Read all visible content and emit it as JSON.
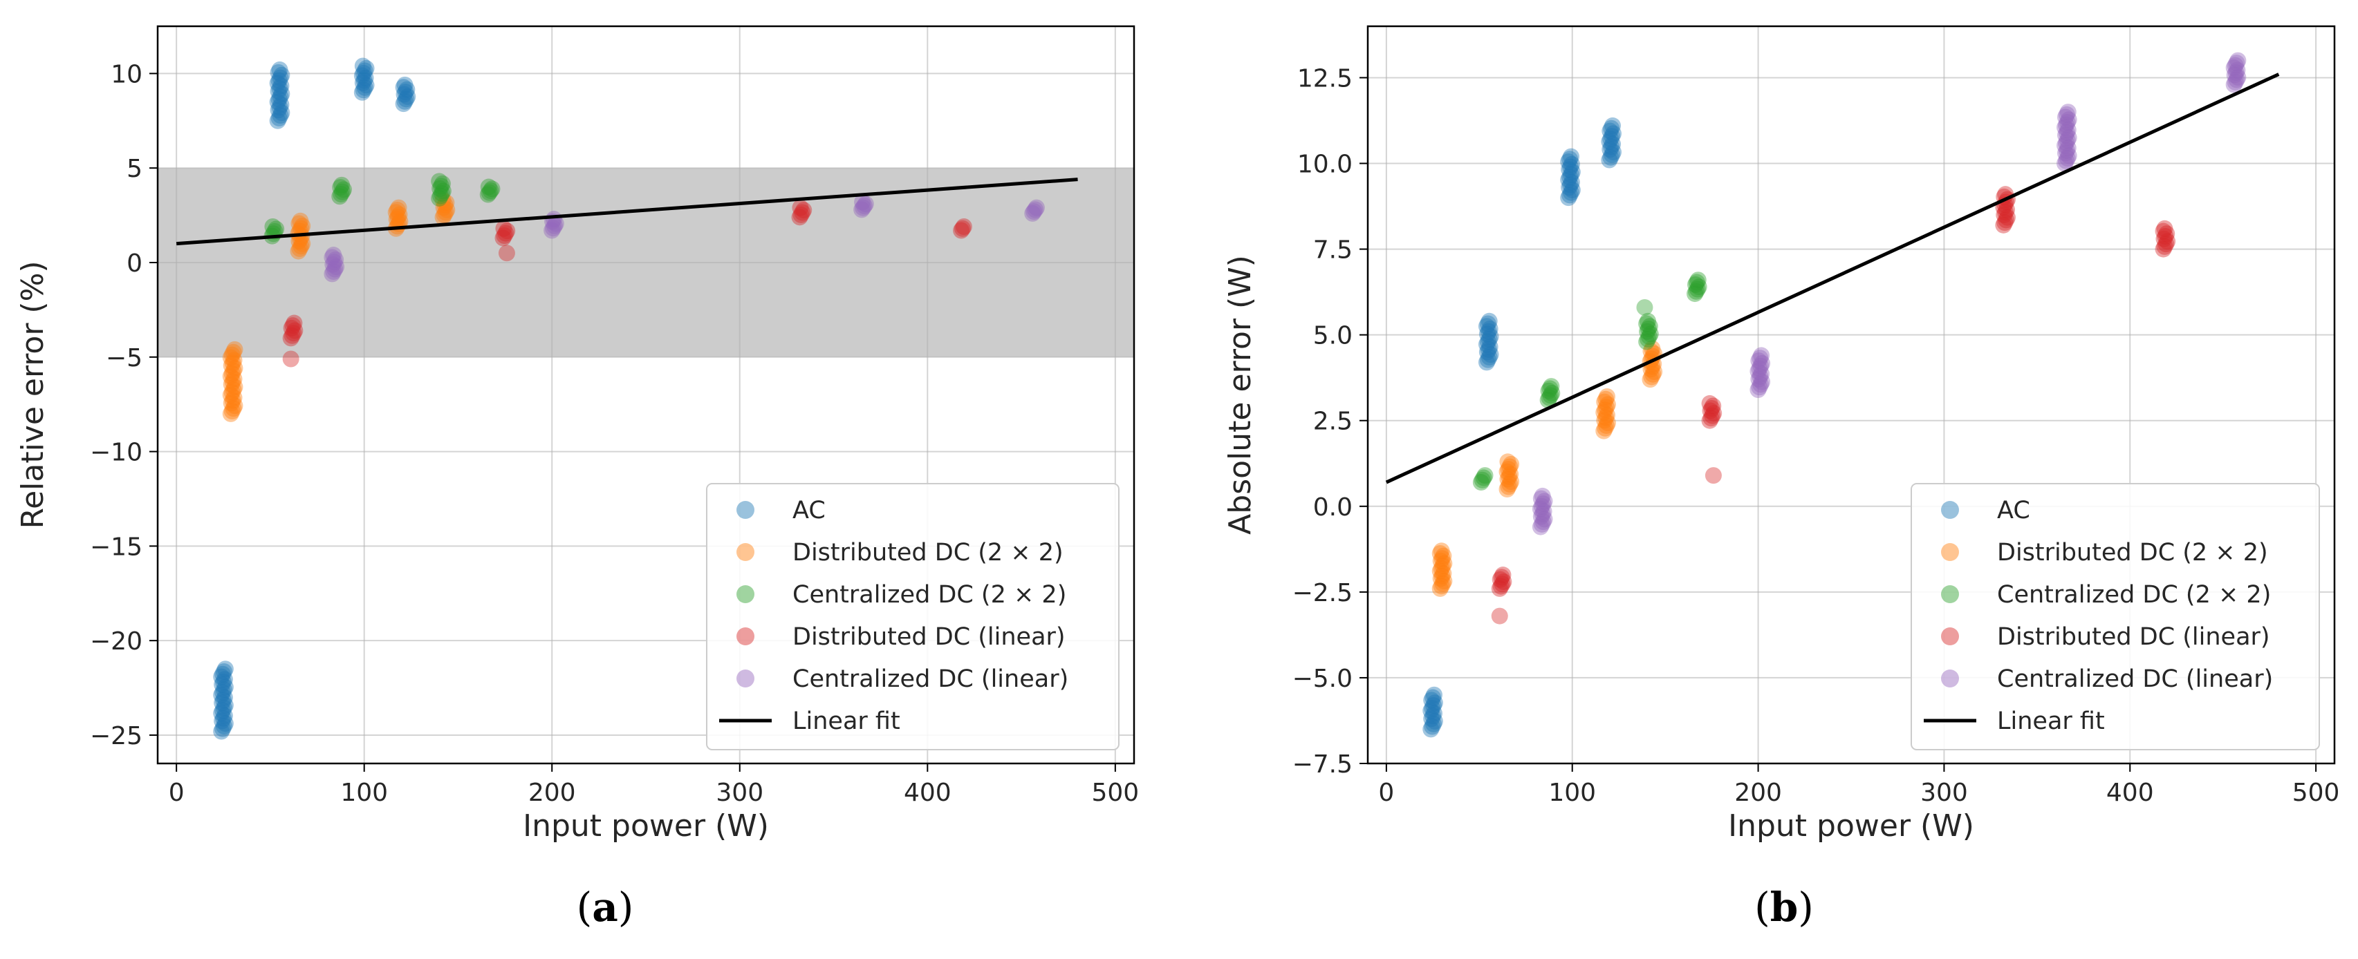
{
  "chart_data": [
    {
      "type": "scatter",
      "panel_label": {
        "open": "(",
        "letter": "a",
        "close": ")"
      },
      "title": "",
      "xlabel": "Input power (W)",
      "ylabel": "Relative error (%)",
      "xlim": [
        -10,
        510
      ],
      "ylim": [
        -26.5,
        12.5
      ],
      "xticks": [
        0,
        100,
        200,
        300,
        400,
        500
      ],
      "yticks": [
        -25,
        -20,
        -15,
        -10,
        -5,
        0,
        5,
        10
      ],
      "grid": true,
      "shaded_band": {
        "y_from": -5,
        "y_to": 5,
        "color": "#cccccc"
      },
      "legend_position": "lower-right",
      "series": [
        {
          "name": "AC",
          "color": "#1f77b4",
          "clusters": [
            {
              "x": 25,
              "y_low": -24.8,
              "y_high": -21.5
            },
            {
              "x": 55,
              "y_low": 7.5,
              "y_high": 10.2
            },
            {
              "x": 100,
              "y_low": 9.0,
              "y_high": 10.4
            },
            {
              "x": 122,
              "y_low": 8.4,
              "y_high": 9.4
            }
          ]
        },
        {
          "name": "Distributed DC (2 × 2)",
          "color": "#ff7f0e",
          "clusters": [
            {
              "x": 30,
              "y_low": -8.0,
              "y_high": -4.6
            },
            {
              "x": 66,
              "y_low": 0.6,
              "y_high": 2.2
            },
            {
              "x": 118,
              "y_low": 1.8,
              "y_high": 2.9
            },
            {
              "x": 143,
              "y_low": 2.4,
              "y_high": 3.3
            }
          ]
        },
        {
          "name": "Centralized DC (2 × 2)",
          "color": "#2ca02c",
          "clusters": [
            {
              "x": 52,
              "y_low": 1.4,
              "y_high": 1.9
            },
            {
              "x": 88,
              "y_low": 3.5,
              "y_high": 4.1
            },
            {
              "x": 141,
              "y_low": 3.4,
              "y_high": 4.3
            },
            {
              "x": 167,
              "y_low": 3.6,
              "y_high": 4.0
            }
          ]
        },
        {
          "name": "Distributed DC (linear)",
          "color": "#d62728",
          "clusters": [
            {
              "x": 62,
              "y_low": -4.0,
              "y_high": -3.2
            },
            {
              "x": 62,
              "y_low": -5.1,
              "y_high": -5.1,
              "faint": true
            },
            {
              "x": 175,
              "y_low": 1.3,
              "y_high": 1.8
            },
            {
              "x": 177,
              "y_low": 0.5,
              "y_high": 0.5,
              "faint": true
            },
            {
              "x": 333,
              "y_low": 2.4,
              "y_high": 2.9
            },
            {
              "x": 419,
              "y_low": 1.7,
              "y_high": 1.9
            }
          ]
        },
        {
          "name": "Centralized DC (linear)",
          "color": "#9467bd",
          "clusters": [
            {
              "x": 84,
              "y_low": -0.6,
              "y_high": 0.4
            },
            {
              "x": 201,
              "y_low": 1.7,
              "y_high": 2.3
            },
            {
              "x": 366,
              "y_low": 2.8,
              "y_high": 3.2
            },
            {
              "x": 457,
              "y_low": 2.6,
              "y_high": 2.9
            }
          ]
        }
      ],
      "fit": {
        "name": "Linear fit",
        "color": "#000000",
        "x": [
          0,
          480
        ],
        "y": [
          1.0,
          4.4
        ]
      },
      "legend": [
        "AC",
        "Distributed DC (2 × 2)",
        "Centralized DC (2 × 2)",
        "Distributed DC (linear)",
        "Centralized DC (linear)",
        "Linear fit"
      ]
    },
    {
      "type": "scatter",
      "panel_label": {
        "open": "(",
        "letter": "b",
        "close": ")"
      },
      "title": "",
      "xlabel": "Input power (W)",
      "ylabel": "Absolute error (W)",
      "xlim": [
        -10,
        510
      ],
      "ylim": [
        -7.5,
        14.0
      ],
      "xticks": [
        0,
        100,
        200,
        300,
        400,
        500
      ],
      "yticks": [
        -7.5,
        -5.0,
        -2.5,
        0.0,
        2.5,
        5.0,
        7.5,
        10.0,
        12.5
      ],
      "ytick_labels": [
        "−7.5",
        "−5.0",
        "−2.5",
        "0.0",
        "2.5",
        "5.0",
        "7.5",
        "10.0",
        "12.5"
      ],
      "grid": true,
      "legend_position": "lower-right",
      "series": [
        {
          "name": "AC",
          "color": "#1f77b4",
          "clusters": [
            {
              "x": 25,
              "y_low": -6.5,
              "y_high": -5.5
            },
            {
              "x": 55,
              "y_low": 4.2,
              "y_high": 5.4
            },
            {
              "x": 99,
              "y_low": 9.0,
              "y_high": 10.2
            },
            {
              "x": 121,
              "y_low": 10.1,
              "y_high": 11.1
            }
          ]
        },
        {
          "name": "Distributed DC (2 × 2)",
          "color": "#ff7f0e",
          "clusters": [
            {
              "x": 30,
              "y_low": -2.4,
              "y_high": -1.3
            },
            {
              "x": 66,
              "y_low": 0.5,
              "y_high": 1.3
            },
            {
              "x": 118,
              "y_low": 2.2,
              "y_high": 3.2
            },
            {
              "x": 143,
              "y_low": 3.7,
              "y_high": 4.6
            }
          ]
        },
        {
          "name": "Centralized DC (2 × 2)",
          "color": "#2ca02c",
          "clusters": [
            {
              "x": 52,
              "y_low": 0.7,
              "y_high": 0.9
            },
            {
              "x": 88,
              "y_low": 3.1,
              "y_high": 3.5
            },
            {
              "x": 141,
              "y_low": 4.8,
              "y_high": 5.4
            },
            {
              "x": 140,
              "y_low": 5.8,
              "y_high": 5.8,
              "faint": true
            },
            {
              "x": 167,
              "y_low": 6.2,
              "y_high": 6.6
            }
          ]
        },
        {
          "name": "Distributed DC (linear)",
          "color": "#d62728",
          "clusters": [
            {
              "x": 62,
              "y_low": -2.4,
              "y_high": -2.0
            },
            {
              "x": 62,
              "y_low": -3.2,
              "y_high": -3.2,
              "faint": true
            },
            {
              "x": 175,
              "y_low": 2.5,
              "y_high": 3.0
            },
            {
              "x": 177,
              "y_low": 0.9,
              "y_high": 0.9,
              "faint": true
            },
            {
              "x": 333,
              "y_low": 8.2,
              "y_high": 9.1
            },
            {
              "x": 419,
              "y_low": 7.5,
              "y_high": 8.1
            }
          ]
        },
        {
          "name": "Centralized DC (linear)",
          "color": "#9467bd",
          "clusters": [
            {
              "x": 84,
              "y_low": -0.6,
              "y_high": 0.3
            },
            {
              "x": 201,
              "y_low": 3.4,
              "y_high": 4.4
            },
            {
              "x": 366,
              "y_low": 10.0,
              "y_high": 11.5
            },
            {
              "x": 457,
              "y_low": 12.3,
              "y_high": 13.0
            }
          ]
        }
      ],
      "fit": {
        "name": "Linear fit",
        "color": "#000000",
        "x": [
          0,
          480
        ],
        "y": [
          0.7,
          12.6
        ]
      },
      "legend": [
        "AC",
        "Distributed DC (2 × 2)",
        "Centralized DC (2 × 2)",
        "Distributed DC (linear)",
        "Centralized DC (linear)",
        "Linear fit"
      ]
    }
  ]
}
